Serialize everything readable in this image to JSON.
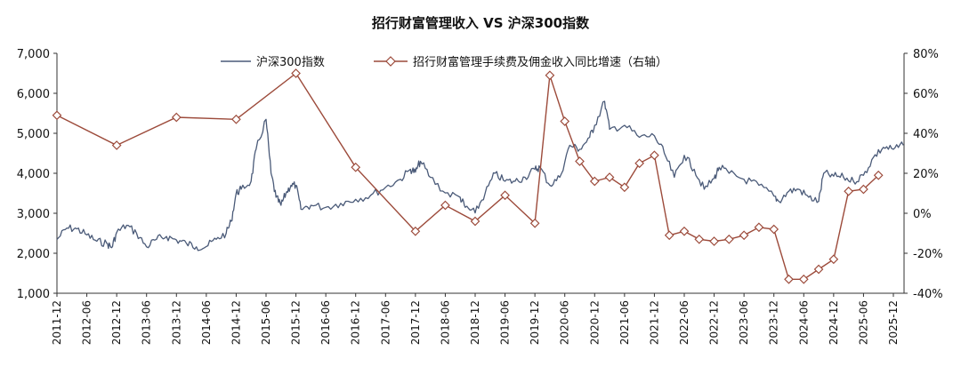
{
  "chart_data": {
    "type": "line",
    "title": "招行财富管理收入 VS 沪深300指数",
    "left_axis": {
      "ylim": [
        1000,
        7000
      ],
      "ticks": [
        1000,
        2000,
        3000,
        4000,
        5000,
        6000,
        7000
      ],
      "tick_labels": [
        "1,000",
        "2,000",
        "3,000",
        "4,000",
        "5,000",
        "6,000",
        "7,000"
      ]
    },
    "right_axis": {
      "ylim": [
        -40,
        80
      ],
      "ticks": [
        -40,
        -20,
        0,
        20,
        40,
        60,
        80
      ],
      "tick_labels": [
        "-40%",
        "-20%",
        "0%",
        "20%",
        "40%",
        "60%",
        "80%"
      ]
    },
    "x_tick_labels": [
      "2011-12",
      "2012-06",
      "2012-12",
      "2013-06",
      "2013-12",
      "2014-06",
      "2014-12",
      "2015-06",
      "2015-12",
      "2016-06",
      "2016-12",
      "2017-06",
      "2017-12",
      "2018-06",
      "2018-12",
      "2019-06",
      "2019-12",
      "2020-06",
      "2020-12",
      "2021-06",
      "2021-12",
      "2022-06",
      "2022-12",
      "2023-06",
      "2023-12",
      "2024-06",
      "2024-12",
      "2025-06",
      "2025-12"
    ],
    "grid": false,
    "legend_position": "top",
    "series": [
      {
        "name": "沪深300指数",
        "axis": "left",
        "color": "#4a5a78",
        "style": "line",
        "points": [
          [
            "2011-12",
            2345
          ],
          [
            "2012-02",
            2630
          ],
          [
            "2012-04",
            2610
          ],
          [
            "2012-06",
            2460
          ],
          [
            "2012-08",
            2300
          ],
          [
            "2012-10",
            2250
          ],
          [
            "2012-11",
            2140
          ],
          [
            "2012-12",
            2520
          ],
          [
            "2013-02",
            2700
          ],
          [
            "2013-04",
            2500
          ],
          [
            "2013-06",
            2160
          ],
          [
            "2013-08",
            2350
          ],
          [
            "2013-10",
            2420
          ],
          [
            "2013-12",
            2330
          ],
          [
            "2014-02",
            2250
          ],
          [
            "2014-04",
            2160
          ],
          [
            "2014-06",
            2170
          ],
          [
            "2014-08",
            2350
          ],
          [
            "2014-10",
            2500
          ],
          [
            "2014-11",
            2800
          ],
          [
            "2014-12",
            3500
          ],
          [
            "2015-01",
            3600
          ],
          [
            "2015-03",
            3800
          ],
          [
            "2015-04",
            4600
          ],
          [
            "2015-06",
            5350
          ],
          [
            "2015-07",
            4000
          ],
          [
            "2015-08",
            3400
          ],
          [
            "2015-09",
            3200
          ],
          [
            "2015-10",
            3500
          ],
          [
            "2015-11",
            3700
          ],
          [
            "2015-12",
            3700
          ],
          [
            "2016-01",
            3100
          ],
          [
            "2016-03",
            3200
          ],
          [
            "2016-06",
            3150
          ],
          [
            "2016-09",
            3250
          ],
          [
            "2016-12",
            3350
          ],
          [
            "2017-03",
            3450
          ],
          [
            "2017-06",
            3650
          ],
          [
            "2017-09",
            3850
          ],
          [
            "2017-11",
            4100
          ],
          [
            "2017-12",
            4030
          ],
          [
            "2018-01",
            4300
          ],
          [
            "2018-03",
            3900
          ],
          [
            "2018-06",
            3510
          ],
          [
            "2018-09",
            3400
          ],
          [
            "2018-10",
            3150
          ],
          [
            "2018-12",
            3010
          ],
          [
            "2019-02",
            3500
          ],
          [
            "2019-04",
            4000
          ],
          [
            "2019-06",
            3800
          ],
          [
            "2019-08",
            3800
          ],
          [
            "2019-10",
            3900
          ],
          [
            "2019-12",
            4100
          ],
          [
            "2020-01",
            4150
          ],
          [
            "2020-03",
            3700
          ],
          [
            "2020-05",
            3900
          ],
          [
            "2020-07",
            4700
          ],
          [
            "2020-09",
            4600
          ],
          [
            "2020-11",
            4900
          ],
          [
            "2020-12",
            5200
          ],
          [
            "2021-02",
            5800
          ],
          [
            "2021-03",
            5100
          ],
          [
            "2021-06",
            5200
          ],
          [
            "2021-09",
            4900
          ],
          [
            "2021-12",
            4940
          ],
          [
            "2022-02",
            4500
          ],
          [
            "2022-04",
            3900
          ],
          [
            "2022-06",
            4450
          ],
          [
            "2022-08",
            4100
          ],
          [
            "2022-10",
            3600
          ],
          [
            "2022-12",
            3870
          ],
          [
            "2023-01",
            4150
          ],
          [
            "2023-03",
            4000
          ],
          [
            "2023-06",
            3850
          ],
          [
            "2023-09",
            3700
          ],
          [
            "2023-12",
            3430
          ],
          [
            "2024-01",
            3300
          ],
          [
            "2024-03",
            3550
          ],
          [
            "2024-05",
            3600
          ],
          [
            "2024-07",
            3400
          ],
          [
            "2024-09",
            3300
          ],
          [
            "2024-10",
            4000
          ],
          [
            "2024-12",
            3930
          ],
          [
            "2025-02",
            3900
          ],
          [
            "2025-04",
            3800
          ],
          [
            "2025-06",
            3950
          ],
          [
            "2025-08",
            4400
          ],
          [
            "2025-10",
            4650
          ],
          [
            "2025-12",
            4600
          ],
          [
            "2026-02",
            4700
          ]
        ]
      },
      {
        "name": "招行财富管理手续费及佣金收入同比增速（右轴）",
        "axis": "right",
        "color": "#9c4a3a",
        "style": "line-diamond",
        "points": [
          [
            "2011-12",
            49
          ],
          [
            "2012-12",
            34
          ],
          [
            "2013-12",
            48
          ],
          [
            "2014-12",
            47
          ],
          [
            "2015-12",
            70
          ],
          [
            "2016-12",
            23
          ],
          [
            "2017-12",
            -9
          ],
          [
            "2018-06",
            4
          ],
          [
            "2018-12",
            -4
          ],
          [
            "2019-06",
            9
          ],
          [
            "2019-12",
            -5
          ],
          [
            "2020-03",
            69
          ],
          [
            "2020-06",
            46
          ],
          [
            "2020-09",
            26
          ],
          [
            "2020-12",
            16
          ],
          [
            "2021-03",
            18
          ],
          [
            "2021-06",
            13
          ],
          [
            "2021-09",
            25
          ],
          [
            "2021-12",
            29
          ],
          [
            "2022-03",
            -11
          ],
          [
            "2022-06",
            -9
          ],
          [
            "2022-09",
            -13
          ],
          [
            "2022-12",
            -14
          ],
          [
            "2023-03",
            -13
          ],
          [
            "2023-06",
            -11
          ],
          [
            "2023-09",
            -7
          ],
          [
            "2023-12",
            -8
          ],
          [
            "2024-03",
            -33
          ],
          [
            "2024-06",
            -33
          ],
          [
            "2024-09",
            -28
          ],
          [
            "2024-12",
            -23
          ],
          [
            "2025-03",
            11
          ],
          [
            "2025-06",
            12
          ],
          [
            "2025-09",
            19
          ]
        ]
      }
    ]
  }
}
